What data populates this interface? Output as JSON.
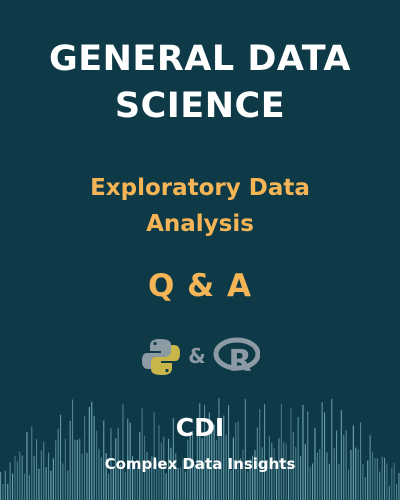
{
  "title": {
    "line1": "GENERAL DATA",
    "line2": "SCIENCE"
  },
  "subtitle": {
    "line1": "Exploratory Data",
    "line2": "Analysis"
  },
  "qa_label": "Q & A",
  "logos": {
    "left_icon": "python-icon",
    "separator": "&",
    "right_icon": "r-language-icon"
  },
  "brand": {
    "acronym": "CDI",
    "name": "Complex Data Insights"
  },
  "colors": {
    "background": "#0e3a47",
    "title": "#ffffff",
    "accent": "#f5b556",
    "logo_gray": "#8c9aa4",
    "waveform": "#7fb8c6"
  }
}
